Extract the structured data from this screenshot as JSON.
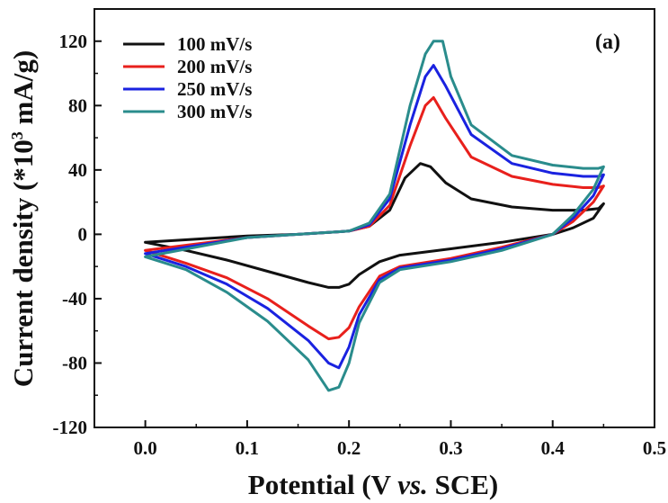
{
  "chart_data": {
    "type": "line",
    "panel_label": "(a)",
    "xlabel": "Potential (V vs. SCE)",
    "xlabel_parts": {
      "pre": "Potential (V ",
      "italic": "vs.",
      "post": " SCE)"
    },
    "ylabel": "Current density (*10³ mA/g)",
    "ylabel_parts": {
      "pre": "Current density (*10",
      "sup": "3",
      "post": " mA/g)"
    },
    "xlim": [
      -0.05,
      0.5
    ],
    "ylim": [
      -120,
      140
    ],
    "xticks": [
      0.0,
      0.1,
      0.2,
      0.3,
      0.4,
      0.5
    ],
    "xtick_labels": [
      "0.0",
      "0.1",
      "0.2",
      "0.3",
      "0.4",
      "0.5"
    ],
    "yticks": [
      -120,
      -80,
      -40,
      0,
      40,
      80,
      120
    ],
    "ytick_labels": [
      "-120",
      "-80",
      "-40",
      "0",
      "40",
      "80",
      "120"
    ],
    "grid": false,
    "legend_position": "top-left",
    "colors": {
      "100 mV/s": "#111111",
      "200 mV/s": "#e8201c",
      "250 mV/s": "#1a22e0",
      "300 mV/s": "#2a8c8c"
    },
    "series": [
      {
        "name": "100 mV/s",
        "color": "#111111",
        "x": [
          0.0,
          0.05,
          0.1,
          0.15,
          0.2,
          0.22,
          0.24,
          0.255,
          0.27,
          0.28,
          0.295,
          0.32,
          0.36,
          0.4,
          0.43,
          0.445,
          0.45,
          0.44,
          0.42,
          0.4,
          0.35,
          0.3,
          0.25,
          0.23,
          0.21,
          0.2,
          0.19,
          0.18,
          0.16,
          0.12,
          0.08,
          0.04,
          0.0
        ],
        "y": [
          -5,
          -3,
          -1,
          0,
          2,
          5,
          15,
          35,
          44,
          42,
          32,
          22,
          17,
          15,
          15,
          16,
          19,
          10,
          4,
          0,
          -5,
          -9,
          -13,
          -17,
          -25,
          -31,
          -33,
          -33,
          -30,
          -23,
          -16,
          -10,
          -5
        ]
      },
      {
        "name": "200 mV/s",
        "color": "#e8201c",
        "x": [
          0.0,
          0.05,
          0.1,
          0.15,
          0.2,
          0.22,
          0.24,
          0.26,
          0.275,
          0.283,
          0.295,
          0.32,
          0.36,
          0.4,
          0.43,
          0.445,
          0.45,
          0.44,
          0.42,
          0.4,
          0.35,
          0.3,
          0.25,
          0.23,
          0.21,
          0.2,
          0.19,
          0.18,
          0.16,
          0.12,
          0.08,
          0.04,
          0.0
        ],
        "y": [
          -10,
          -6,
          -2,
          0,
          2,
          5,
          18,
          55,
          80,
          85,
          72,
          48,
          36,
          31,
          29,
          29,
          30,
          20,
          8,
          0,
          -8,
          -15,
          -20,
          -26,
          -45,
          -58,
          -64,
          -65,
          -57,
          -40,
          -27,
          -18,
          -10
        ]
      },
      {
        "name": "250 mV/s",
        "color": "#1a22e0",
        "x": [
          0.0,
          0.05,
          0.1,
          0.15,
          0.2,
          0.22,
          0.24,
          0.26,
          0.275,
          0.283,
          0.295,
          0.32,
          0.36,
          0.4,
          0.43,
          0.445,
          0.45,
          0.44,
          0.42,
          0.4,
          0.35,
          0.3,
          0.25,
          0.23,
          0.21,
          0.2,
          0.19,
          0.18,
          0.16,
          0.12,
          0.08,
          0.04,
          0.0
        ],
        "y": [
          -12,
          -7,
          -2,
          0,
          2,
          6,
          22,
          68,
          98,
          105,
          92,
          62,
          44,
          38,
          36,
          36,
          37,
          24,
          10,
          0,
          -9,
          -16,
          -21,
          -28,
          -50,
          -70,
          -83,
          -80,
          -66,
          -46,
          -31,
          -20,
          -12
        ]
      },
      {
        "name": "300 mV/s",
        "color": "#2a8c8c",
        "x": [
          0.0,
          0.05,
          0.1,
          0.15,
          0.2,
          0.22,
          0.24,
          0.26,
          0.275,
          0.283,
          0.292,
          0.3,
          0.32,
          0.36,
          0.4,
          0.43,
          0.445,
          0.45,
          0.44,
          0.42,
          0.4,
          0.35,
          0.3,
          0.25,
          0.23,
          0.21,
          0.2,
          0.19,
          0.18,
          0.16,
          0.12,
          0.08,
          0.04,
          0.0
        ],
        "y": [
          -14,
          -8,
          -2,
          0,
          2,
          7,
          25,
          80,
          112,
          120,
          120,
          98,
          68,
          49,
          43,
          41,
          41,
          42,
          28,
          12,
          0,
          -10,
          -17,
          -22,
          -30,
          -55,
          -80,
          -95,
          -97,
          -78,
          -54,
          -36,
          -22,
          -14
        ]
      }
    ]
  }
}
